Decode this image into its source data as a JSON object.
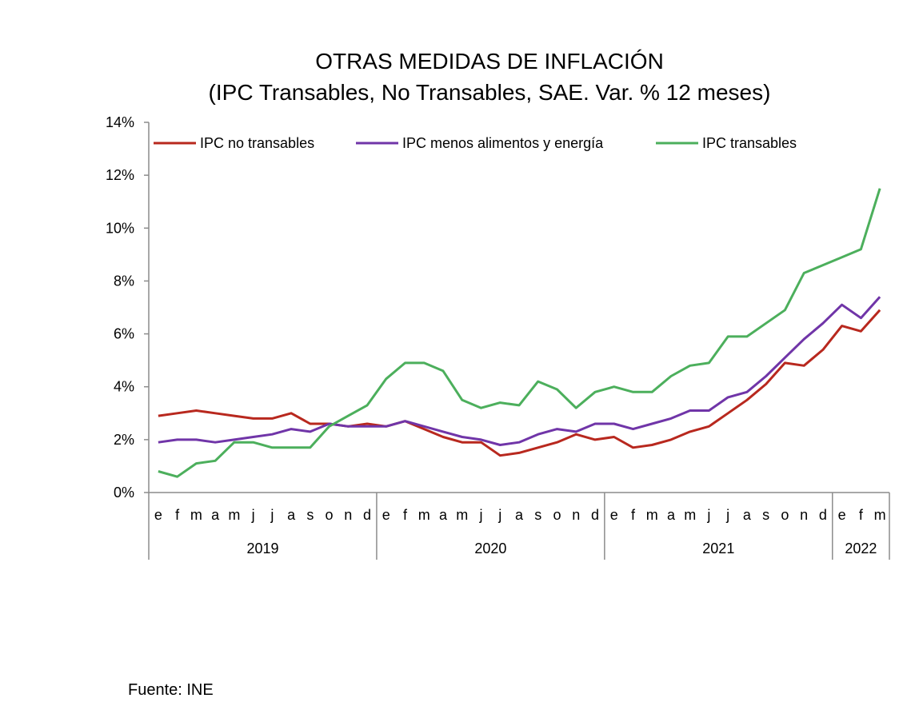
{
  "chart_data": {
    "type": "line",
    "title": "OTRAS MEDIDAS DE INFLACIÓN",
    "subtitle": "(IPC Transables, No Transables, SAE.  Var. % 12 meses)",
    "xlabel": "",
    "ylabel": "",
    "ylim": [
      0,
      14
    ],
    "yticks": [
      0,
      2,
      4,
      6,
      8,
      10,
      12,
      14
    ],
    "ytick_labels": [
      "0%",
      "2%",
      "4%",
      "6%",
      "8%",
      "10%",
      "12%",
      "14%"
    ],
    "grid": false,
    "legend_position": "top",
    "x": [
      "e",
      "f",
      "m",
      "a",
      "m",
      "j",
      "j",
      "a",
      "s",
      "o",
      "n",
      "d",
      "e",
      "f",
      "m",
      "a",
      "m",
      "j",
      "j",
      "a",
      "s",
      "o",
      "n",
      "d",
      "e",
      "f",
      "m",
      "a",
      "m",
      "j",
      "j",
      "a",
      "s",
      "o",
      "n",
      "d",
      "e",
      "f",
      "m"
    ],
    "years": [
      {
        "label": "2019",
        "months": 12
      },
      {
        "label": "2020",
        "months": 12
      },
      {
        "label": "2021",
        "months": 12
      },
      {
        "label": "2022",
        "months": 3
      }
    ],
    "series": [
      {
        "name": "IPC no transables",
        "color": "#B8281E",
        "values": [
          2.9,
          3.0,
          3.1,
          3.0,
          2.9,
          2.8,
          2.8,
          3.0,
          2.6,
          2.6,
          2.5,
          2.6,
          2.5,
          2.7,
          2.4,
          2.1,
          1.9,
          1.9,
          1.4,
          1.5,
          1.7,
          1.9,
          2.2,
          2.0,
          2.1,
          1.7,
          1.8,
          2.0,
          2.3,
          2.5,
          3.0,
          3.5,
          4.1,
          4.9,
          4.8,
          5.4,
          6.3,
          6.1,
          6.9
        ]
      },
      {
        "name": "IPC menos alimentos y energía",
        "color": "#7035A8",
        "values": [
          1.9,
          2.0,
          2.0,
          1.9,
          2.0,
          2.1,
          2.2,
          2.4,
          2.3,
          2.6,
          2.5,
          2.5,
          2.5,
          2.7,
          2.5,
          2.3,
          2.1,
          2.0,
          1.8,
          1.9,
          2.2,
          2.4,
          2.3,
          2.6,
          2.6,
          2.4,
          2.6,
          2.8,
          3.1,
          3.1,
          3.6,
          3.8,
          4.4,
          5.1,
          5.8,
          6.4,
          7.1,
          6.6,
          7.4
        ]
      },
      {
        "name": "IPC transables",
        "color": "#4CAF5C",
        "values": [
          0.8,
          0.6,
          1.1,
          1.2,
          1.9,
          1.9,
          1.7,
          1.7,
          1.7,
          2.5,
          2.9,
          3.3,
          4.3,
          4.9,
          4.9,
          4.6,
          3.5,
          3.2,
          3.4,
          3.3,
          4.2,
          3.9,
          3.2,
          3.8,
          4.0,
          3.8,
          3.8,
          4.4,
          4.8,
          4.9,
          5.9,
          5.9,
          6.4,
          6.9,
          8.3,
          8.6,
          8.9,
          9.2,
          11.5
        ]
      }
    ]
  },
  "footer": {
    "source": "Fuente: INE"
  }
}
